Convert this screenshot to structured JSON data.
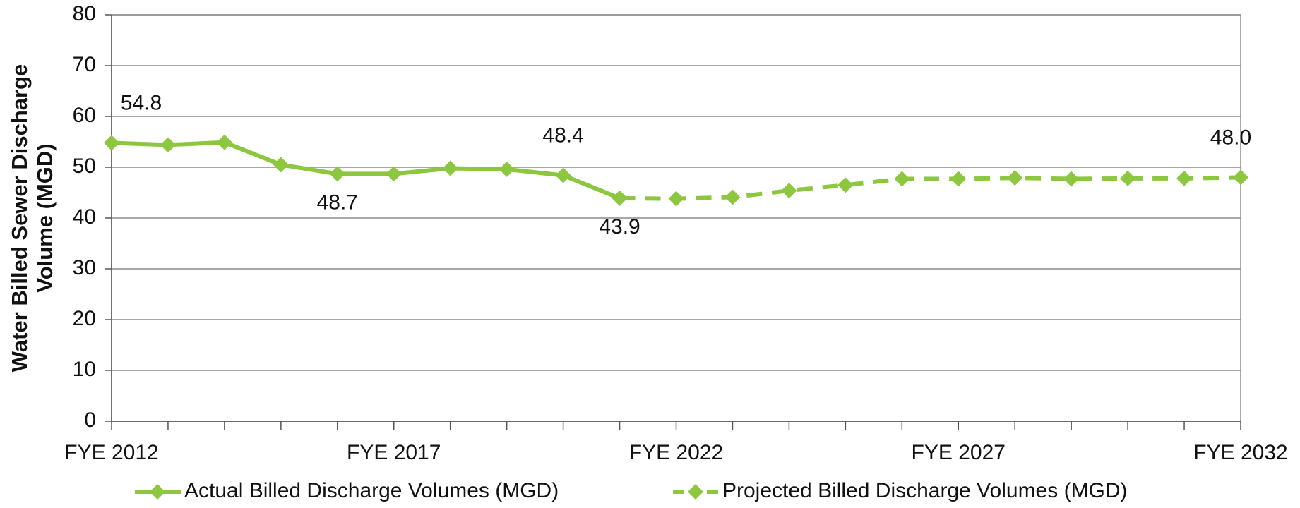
{
  "chart_data": {
    "type": "line",
    "ylabel": [
      "Water Billed Sewer Discharge",
      "Volume (MGD)"
    ],
    "categories": [
      "FYE 2012",
      null,
      null,
      null,
      null,
      "FYE 2017",
      null,
      null,
      null,
      null,
      "FYE 2022",
      null,
      null,
      null,
      null,
      "FYE 2027",
      null,
      null,
      null,
      null,
      "FYE 2032"
    ],
    "series": [
      {
        "name": "Actual Billed Discharge Volumes (MGD)",
        "color": "#8dc63f",
        "dashed": false,
        "values": [
          54.8,
          54.4,
          54.9,
          50.5,
          48.7,
          48.7,
          49.8,
          49.6,
          48.4,
          43.9,
          null,
          null,
          null,
          null,
          null,
          null,
          null,
          null,
          null,
          null,
          null
        ],
        "value_labels": [
          "54.8",
          null,
          null,
          null,
          "48.7",
          null,
          null,
          null,
          "48.4",
          "43.9",
          null,
          null,
          null,
          null,
          null,
          null,
          null,
          null,
          null,
          null,
          null
        ]
      },
      {
        "name": "Projected Billed Discharge Volumes (MGD)",
        "color": "#8dc63f",
        "dashed": true,
        "values": [
          null,
          null,
          null,
          null,
          null,
          null,
          null,
          null,
          null,
          43.9,
          43.8,
          44.1,
          45.4,
          46.5,
          47.7,
          47.7,
          47.9,
          47.7,
          47.8,
          47.8,
          48.0
        ],
        "value_labels": [
          null,
          null,
          null,
          null,
          null,
          null,
          null,
          null,
          null,
          null,
          null,
          null,
          null,
          null,
          null,
          null,
          null,
          null,
          null,
          null,
          "48.0"
        ]
      }
    ],
    "ylim": [
      0,
      80
    ],
    "yticks": [
      0,
      10,
      20,
      30,
      40,
      50,
      60,
      70,
      80
    ],
    "grid": true
  }
}
